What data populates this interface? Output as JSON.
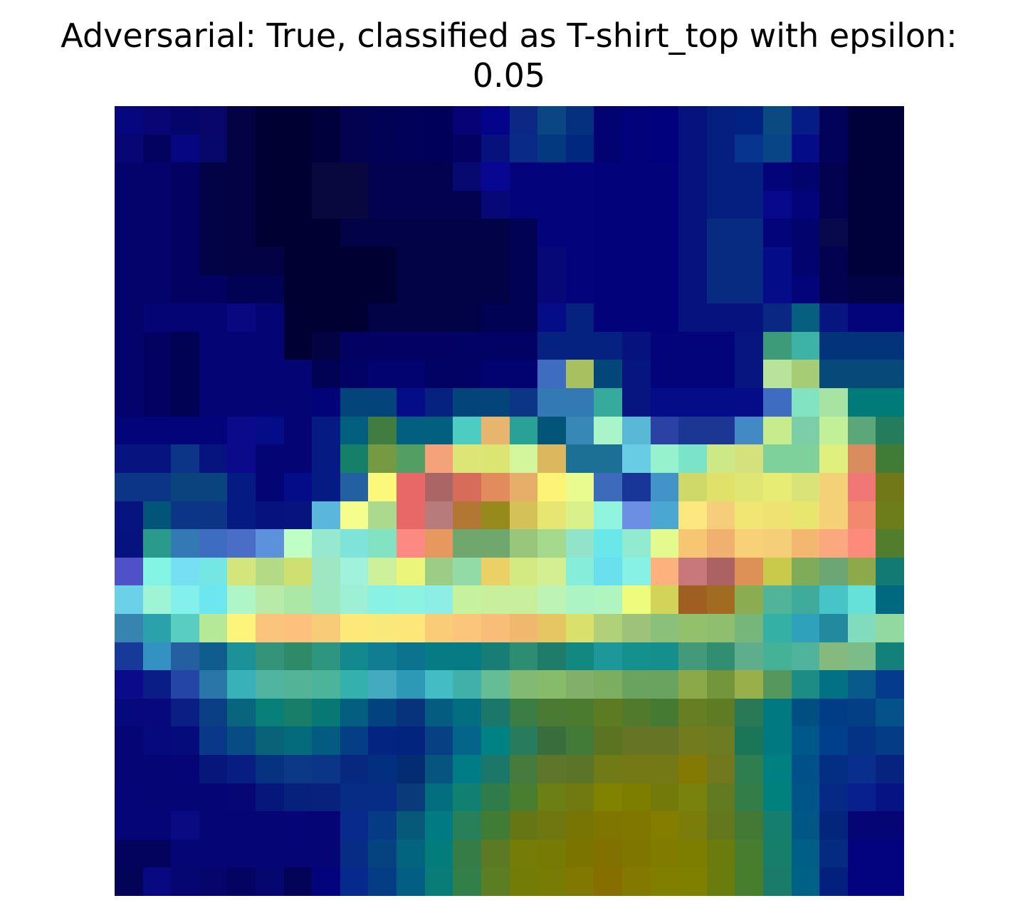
{
  "title": {
    "line1": "Adversarial: True, classified as T-shirt_top with epsilon:",
    "line2": "0.05"
  },
  "image": {
    "rows": 28,
    "cols": 28,
    "pixels": [
      [
        "#06067e",
        "#070674",
        "#04046a",
        "#080668",
        "#020245",
        "#000033",
        "#000033",
        "#00003d",
        "#020251",
        "#010156",
        "#01015a",
        "#00005b",
        "#050376",
        "#04048a",
        "#0d2784",
        "#0a4682",
        "#052f7f",
        "#020272",
        "#02027a",
        "#01017e",
        "#06137f",
        "#051f80",
        "#022283",
        "#0a4a81",
        "#051c86",
        "#02025a",
        "#00003a",
        "#00003a"
      ],
      [
        "#070674",
        "#03025f",
        "#060680",
        "#070669",
        "#020245",
        "#000033",
        "#000033",
        "#00003d",
        "#020251",
        "#010156",
        "#01015a",
        "#00005b",
        "#030262",
        "#07117e",
        "#0a2a88",
        "#033a7f",
        "#01287f",
        "#020272",
        "#02027a",
        "#01017e",
        "#06137f",
        "#051f80",
        "#06348e",
        "#074586",
        "#050c88",
        "#02025a",
        "#00003a",
        "#00003a"
      ],
      [
        "#03036b",
        "#03036b",
        "#030262",
        "#020247",
        "#020245",
        "#000033",
        "#000033",
        "#08083f",
        "#08083f",
        "#020251",
        "#020251",
        "#020251",
        "#080871",
        "#070791",
        "#03037c",
        "#03037c",
        "#03037c",
        "#02027a",
        "#02027a",
        "#02027a",
        "#06137f",
        "#051f80",
        "#051f80",
        "#04047a",
        "#03036d",
        "#020251",
        "#00003a",
        "#00003a"
      ],
      [
        "#03036b",
        "#03036b",
        "#030262",
        "#020247",
        "#020245",
        "#000033",
        "#000033",
        "#08083f",
        "#08083f",
        "#020251",
        "#020251",
        "#020251",
        "#020251",
        "#070778",
        "#03037c",
        "#03037c",
        "#03037c",
        "#02027a",
        "#02027a",
        "#02027a",
        "#06137f",
        "#051f80",
        "#051f80",
        "#08088c",
        "#04047a",
        "#020251",
        "#00003a",
        "#00003a"
      ],
      [
        "#03036b",
        "#03036b",
        "#030262",
        "#020247",
        "#020245",
        "#000033",
        "#000033",
        "#000033",
        "#020247",
        "#020247",
        "#020247",
        "#020247",
        "#020247",
        "#020247",
        "#020255",
        "#03037c",
        "#03037c",
        "#02027a",
        "#02027a",
        "#02027a",
        "#06137f",
        "#062b80",
        "#062b80",
        "#04047a",
        "#03036d",
        "#08084c",
        "#00003a",
        "#00003a"
      ],
      [
        "#03036b",
        "#03036b",
        "#030262",
        "#020247",
        "#020245",
        "#020245",
        "#000033",
        "#000033",
        "#000033",
        "#000033",
        "#020247",
        "#020247",
        "#020247",
        "#020247",
        "#020255",
        "#070778",
        "#03037c",
        "#02027a",
        "#02027a",
        "#02027a",
        "#06137f",
        "#062b80",
        "#062b80",
        "#050c88",
        "#03036d",
        "#020251",
        "#00003a",
        "#00003a"
      ],
      [
        "#03036b",
        "#03036b",
        "#030262",
        "#030262",
        "#020255",
        "#020255",
        "#000033",
        "#000033",
        "#000033",
        "#000033",
        "#020247",
        "#020247",
        "#020247",
        "#020247",
        "#020255",
        "#070778",
        "#03037c",
        "#02027a",
        "#02027a",
        "#02027a",
        "#06137f",
        "#062b80",
        "#062b80",
        "#050c88",
        "#04047a",
        "#020251",
        "#020247",
        "#020247"
      ],
      [
        "#03036b",
        "#050475",
        "#050475",
        "#050475",
        "#090881",
        "#050475",
        "#000033",
        "#000033",
        "#000033",
        "#020247",
        "#020247",
        "#020247",
        "#020247",
        "#020255",
        "#020255",
        "#050c88",
        "#062280",
        "#02027a",
        "#02027a",
        "#02027a",
        "#06137f",
        "#06137f",
        "#06137f",
        "#0a2784",
        "#065f7f",
        "#061580",
        "#04047a",
        "#04047a"
      ],
      [
        "#03036b",
        "#030262",
        "#020255",
        "#050475",
        "#050475",
        "#050475",
        "#000033",
        "#030344",
        "#030262",
        "#030262",
        "#030262",
        "#030262",
        "#020265",
        "#020265",
        "#020265",
        "#062280",
        "#062280",
        "#062280",
        "#06137f",
        "#04047a",
        "#04047a",
        "#04047a",
        "#061580",
        "#3e9b7a",
        "#3cb3a5",
        "#03337a",
        "#03337a",
        "#03337a"
      ],
      [
        "#03036b",
        "#030262",
        "#020255",
        "#050475",
        "#050475",
        "#050475",
        "#050475",
        "#020255",
        "#020265",
        "#020271",
        "#020271",
        "#020265",
        "#020265",
        "#020271",
        "#020271",
        "#3e6cc0",
        "#a8c060",
        "#034679",
        "#061580",
        "#04047a",
        "#04047a",
        "#04047a",
        "#061580",
        "#b9e29a",
        "#a6cd76",
        "#074a7a",
        "#074a7a",
        "#074a7a"
      ],
      [
        "#03036b",
        "#030262",
        "#020255",
        "#050475",
        "#050475",
        "#050475",
        "#050475",
        "#020279",
        "#03447a",
        "#03447a",
        "#050c88",
        "#062280",
        "#03447a",
        "#03447a",
        "#0c3588",
        "#3379b4",
        "#3379b4",
        "#35aa9d",
        "#061580",
        "#050c88",
        "#050c88",
        "#050c88",
        "#050c88",
        "#3e6cc0",
        "#82e3c3",
        "#a7e3a2",
        "#007b7a",
        "#007b7a"
      ],
      [
        "#04047a",
        "#04047a",
        "#04047a",
        "#04047a",
        "#0a0a8b",
        "#050c88",
        "#050475",
        "#051b83",
        "#025f7f",
        "#417c40",
        "#025f7f",
        "#025f7f",
        "#4dccc2",
        "#e7b56d",
        "#2aa197",
        "#025579",
        "#3888b7",
        "#a9f4c9",
        "#58b8d5",
        "#2c41a4",
        "#1c3693",
        "#1c3693",
        "#4289c5",
        "#c7ec8d",
        "#7ccea8",
        "#c2f099",
        "#5ca779",
        "#247c5d"
      ],
      [
        "#07147f",
        "#07147f",
        "#0c3588",
        "#07147f",
        "#0a0a8b",
        "#050475",
        "#050475",
        "#051b83",
        "#157f6a",
        "#769a43",
        "#539e62",
        "#f4a27a",
        "#dce576",
        "#dbe672",
        "#d3f59c",
        "#dbb85e",
        "#1c7096",
        "#1c7096",
        "#68cce4",
        "#96f2cc",
        "#7ae3c8",
        "#cde886",
        "#d5e17c",
        "#7ed19b",
        "#7ed19b",
        "#dff07f",
        "#d98d5f",
        "#417c36"
      ],
      [
        "#0c3588",
        "#0c3588",
        "#0b437e",
        "#0b437e",
        "#051b83",
        "#050475",
        "#050c88",
        "#051b83",
        "#2260a2",
        "#fcf87b",
        "#e86868",
        "#a96664",
        "#d86c5b",
        "#e28b5d",
        "#e7ae69",
        "#fdf374",
        "#e9fb8e",
        "#3d6aba",
        "#173698",
        "#4293c8",
        "#cfd96a",
        "#dfe16a",
        "#e0e674",
        "#e7ec74",
        "#d9e378",
        "#f4d077",
        "#f17676",
        "#717817"
      ],
      [
        "#07147f",
        "#025579",
        "#0c3588",
        "#0c3588",
        "#051b83",
        "#06137f",
        "#07147f",
        "#58b7db",
        "#f5fd8c",
        "#abd98d",
        "#e86868",
        "#b67b7a",
        "#b27733",
        "#978a1c",
        "#d4c258",
        "#e7e673",
        "#daf08a",
        "#91f4de",
        "#6d8fe3",
        "#4aa7d2",
        "#fde87f",
        "#f6cd7a",
        "#f1e674",
        "#efe272",
        "#e8e66e",
        "#f4d077",
        "#f2886e",
        "#6d7d1b"
      ],
      [
        "#06137f",
        "#2a9a8d",
        "#3379b4",
        "#3e6cc0",
        "#4a6ec8",
        "#5b92db",
        "#bffec4",
        "#96e8cf",
        "#7ee3d8",
        "#82e3c3",
        "#fd8a82",
        "#e6985f",
        "#6fa76d",
        "#6fa76d",
        "#98c67a",
        "#a5d98b",
        "#91e4c9",
        "#6ae8e9",
        "#91ebd1",
        "#e3fa8e",
        "#f6c672",
        "#f0b06f",
        "#f8d077",
        "#f5cf77",
        "#f3b772",
        "#fba87f",
        "#fe8a7c",
        "#517d2c"
      ],
      [
        "#5050c8",
        "#84f4e4",
        "#77dff2",
        "#74e7e4",
        "#d4e57c",
        "#b5da85",
        "#cfdf70",
        "#9fe7c2",
        "#a0f2dc",
        "#cdf09a",
        "#ebf57a",
        "#9ccd87",
        "#92dba6",
        "#ebd065",
        "#d3e982",
        "#d4ef92",
        "#87eddb",
        "#6ae0ee",
        "#88f1e6",
        "#fdb17c",
        "#c8787a",
        "#ac6262",
        "#dd9157",
        "#c9ca4b",
        "#7fac58",
        "#6ba674",
        "#8daa4a",
        "#127a72"
      ],
      [
        "#6ad1e8",
        "#9ef4d4",
        "#84f0ec",
        "#6de7ef",
        "#aef5c7",
        "#b9eba8",
        "#abe8a6",
        "#9de8be",
        "#9ef0d5",
        "#8af2e4",
        "#8cf2e2",
        "#8ceee4",
        "#c6f29d",
        "#c8ef9b",
        "#c8ef9b",
        "#bcf4b5",
        "#acf4c4",
        "#b0f5c0",
        "#eefc7e",
        "#d1d458",
        "#a05f22",
        "#a16c22",
        "#8bac50",
        "#51b498",
        "#3fab9a",
        "#46c4c8",
        "#66e1d9",
        "#006980"
      ],
      [
        "#3784b0",
        "#2ba1ac",
        "#58cdc0",
        "#b5e997",
        "#fdf47c",
        "#fac47d",
        "#fdc07d",
        "#f7cc79",
        "#fde87a",
        "#f9e97b",
        "#fde77a",
        "#facc77",
        "#fcc57c",
        "#f8be79",
        "#f0b86f",
        "#e6c662",
        "#d9e06b",
        "#b1d07a",
        "#9ec27a",
        "#8bc07b",
        "#93c06b",
        "#8fbe6e",
        "#76b67a",
        "#35b0a5",
        "#30a1ba",
        "#22899e",
        "#80dcbc",
        "#91d99f"
      ],
      [
        "#173a98",
        "#3392c1",
        "#2460a1",
        "#0f5d8f",
        "#1c9198",
        "#339479",
        "#2f8a68",
        "#2e9581",
        "#13888d",
        "#117d92",
        "#0b738d",
        "#077b84",
        "#077b84",
        "#187d74",
        "#2c8d72",
        "#207c6a",
        "#138881",
        "#1d9799",
        "#14918f",
        "#148f8c",
        "#45997b",
        "#328e73",
        "#5ead8c",
        "#45b297",
        "#50b39c",
        "#86b97e",
        "#7bbd89",
        "#14807c"
      ],
      [
        "#0a0a8b",
        "#0a1d87",
        "#2444a6",
        "#2b76a8",
        "#38b2b8",
        "#51b4a1",
        "#52b397",
        "#4cb499",
        "#34b0ad",
        "#43aac0",
        "#2d99b6",
        "#43bcc4",
        "#41b0a8",
        "#65bd96",
        "#82ba73",
        "#86bb6a",
        "#82b06b",
        "#7cae62",
        "#6aa260",
        "#6aa260",
        "#8ca94a",
        "#73963c",
        "#98af4a",
        "#55975c",
        "#1d8c84",
        "#027183",
        "#075a8a",
        "#053b8c"
      ],
      [
        "#05097b",
        "#07087b",
        "#0b1e83",
        "#0a3e85",
        "#08657d",
        "#087f78",
        "#197e69",
        "#087875",
        "#035e7f",
        "#01437f",
        "#07327c",
        "#045c80",
        "#026e80",
        "#1a7769",
        "#3c7d46",
        "#4b7a35",
        "#4a7b2f",
        "#5d7b23",
        "#527a2d",
        "#447a32",
        "#687e23",
        "#5f7c24",
        "#2a7956",
        "#007a80",
        "#004f82",
        "#013d86",
        "#033f84",
        "#05518a"
      ],
      [
        "#050575",
        "#05097b",
        "#060b7c",
        "#0a3889",
        "#084c85",
        "#086278",
        "#046b7c",
        "#045b81",
        "#043e84",
        "#042482",
        "#03247e",
        "#074184",
        "#046489",
        "#008284",
        "#297b5d",
        "#3a6d3c",
        "#427a37",
        "#5a7421",
        "#657425",
        "#657425",
        "#737b1f",
        "#6d7b23",
        "#1a7656",
        "#007a80",
        "#00578a",
        "#003f8b",
        "#043285",
        "#053c86"
      ],
      [
        "#050575",
        "#050575",
        "#050578",
        "#05177b",
        "#071d81",
        "#063380",
        "#0c3985",
        "#0b3586",
        "#06297f",
        "#022f7f",
        "#042c72",
        "#07557f",
        "#007c84",
        "#1a7769",
        "#467b3d",
        "#5e7629",
        "#5b7428",
        "#707b15",
        "#747915",
        "#747915",
        "#827a04",
        "#71781d",
        "#2e7e4f",
        "#008080",
        "#00508a",
        "#022f82",
        "#082f8e",
        "#072380"
      ],
      [
        "#050578",
        "#050575",
        "#050575",
        "#050575",
        "#060675",
        "#06177b",
        "#06217c",
        "#07217c",
        "#072c85",
        "#072c85",
        "#0a3a79",
        "#036e7d",
        "#118071",
        "#307b4a",
        "#497e30",
        "#6b7f14",
        "#707a10",
        "#808300",
        "#7d7e00",
        "#747a0a",
        "#79820c",
        "#627a20",
        "#337d49",
        "#00817d",
        "#005588",
        "#062986",
        "#081f8e",
        "#051383"
      ],
      [
        "#050578",
        "#050578",
        "#0a0a82",
        "#050575",
        "#050575",
        "#050575",
        "#050578",
        "#050575",
        "#082a8d",
        "#053a85",
        "#065978",
        "#007b84",
        "#288058",
        "#407c33",
        "#677614",
        "#6f7711",
        "#777604",
        "#7e7600",
        "#807700",
        "#847e00",
        "#7b7d0a",
        "#63781c",
        "#437935",
        "#157e6d",
        "#005685",
        "#03267c",
        "#050575",
        "#050575"
      ],
      [
        "#03035e",
        "#03035e",
        "#050575",
        "#050575",
        "#050575",
        "#050575",
        "#050575",
        "#050575",
        "#072c85",
        "#054380",
        "#036480",
        "#027d7b",
        "#357c46",
        "#5b7a23",
        "#767c08",
        "#757b05",
        "#7b7500",
        "#807100",
        "#7f7600",
        "#817b00",
        "#7d7e00",
        "#6a7c0d",
        "#487c2f",
        "#177e6a",
        "#005f87",
        "#042b7f",
        "#030380",
        "#030380"
      ],
      [
        "#030358",
        "#080880",
        "#060673",
        "#05056c",
        "#030362",
        "#06066f",
        "#030358",
        "#03037b",
        "#06298d",
        "#053d84",
        "#035e83",
        "#0a7c78",
        "#327f4a",
        "#5c7e22",
        "#737c07",
        "#777d04",
        "#807800",
        "#866e00",
        "#837800",
        "#807f00",
        "#7f7f00",
        "#6a7c0d",
        "#467e2e",
        "#1a7b69",
        "#006186",
        "#04207f",
        "#030380",
        "#030380"
      ]
    ]
  }
}
